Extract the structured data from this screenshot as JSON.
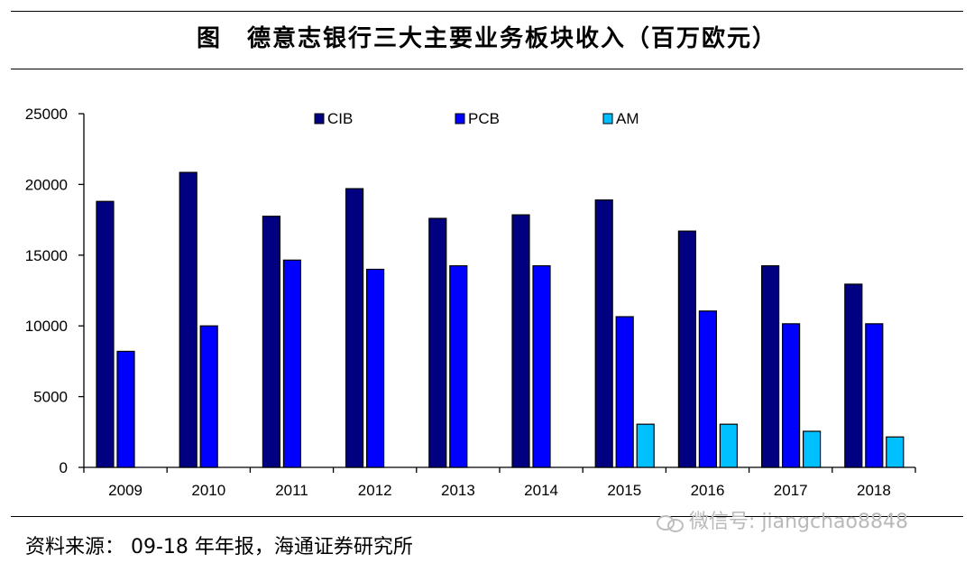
{
  "figure": {
    "title": "图　德意志银行三大主要业务板块收入（百万欧元）",
    "source": "资料来源： 09-18 年年报，海通证券研究所",
    "watermark": "微信号: jiangchao8848"
  },
  "chart_data": {
    "type": "bar",
    "categories": [
      "2009",
      "2010",
      "2011",
      "2012",
      "2013",
      "2014",
      "2015",
      "2016",
      "2017",
      "2018"
    ],
    "series": [
      {
        "name": "CIB",
        "color": "#000080",
        "values": [
          18800,
          20850,
          17750,
          19700,
          17600,
          17850,
          18900,
          16700,
          14250,
          12950
        ]
      },
      {
        "name": "PCB",
        "color": "#0000ff",
        "values": [
          8200,
          10000,
          14650,
          14000,
          14250,
          14250,
          10650,
          11050,
          10150,
          10150
        ]
      },
      {
        "name": "AM",
        "color": "#00c0ff",
        "values": [
          null,
          null,
          null,
          null,
          null,
          null,
          3050,
          3050,
          2550,
          2150
        ]
      }
    ],
    "ylim": [
      0,
      25000
    ],
    "yticks": [
      0,
      5000,
      10000,
      15000,
      20000,
      25000
    ],
    "legend_position": "top-center",
    "grid": false
  }
}
